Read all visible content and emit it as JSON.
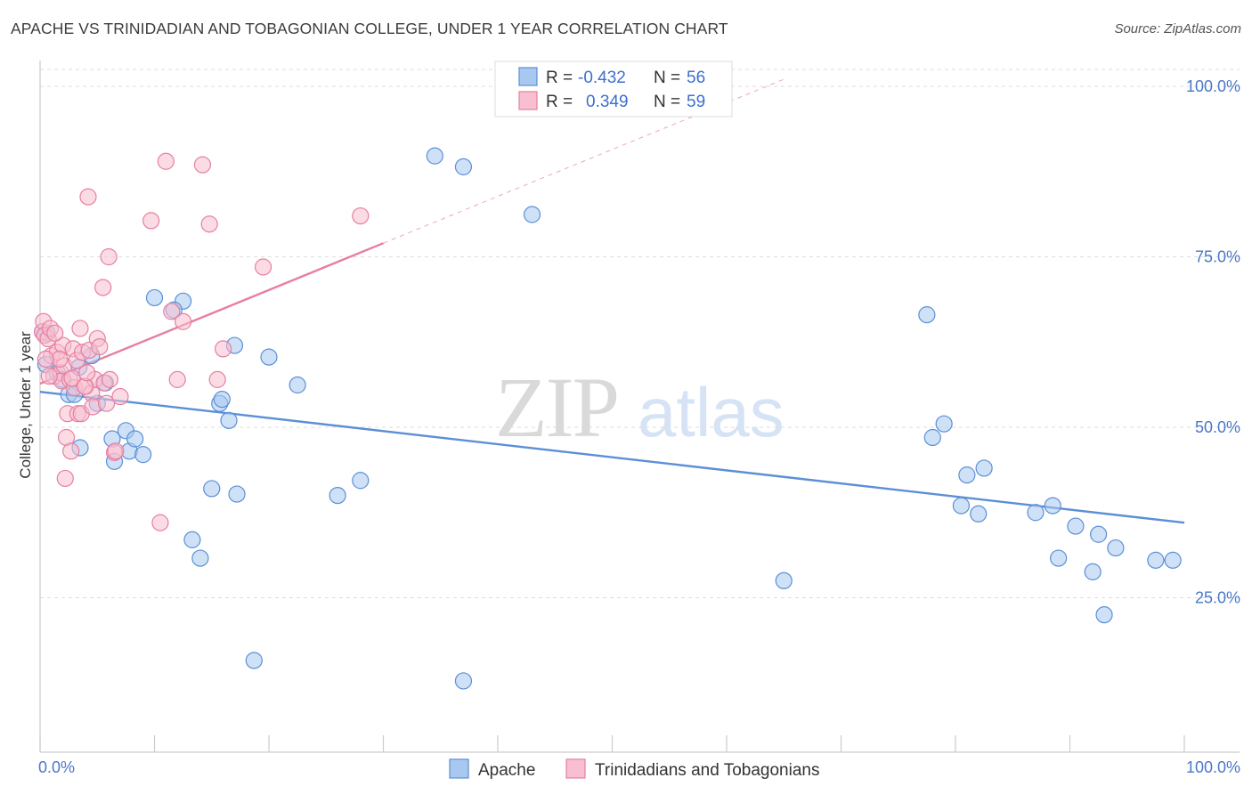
{
  "title": "APACHE VS TRINIDADIAN AND TOBAGONIAN COLLEGE, UNDER 1 YEAR CORRELATION CHART",
  "source": "Source: ZipAtlas.com",
  "watermark": {
    "zip": "ZIP",
    "atlas": "atlas"
  },
  "legend": {
    "r_label": "R =",
    "n_label": "N =",
    "rows": [
      {
        "r": "-0.432",
        "n": "56",
        "fill": "#a8c8f0",
        "stroke": "#5b8fd6"
      },
      {
        "r": "0.349",
        "n": "59",
        "fill": "#f8bfd0",
        "stroke": "#e77fa0"
      }
    ]
  },
  "bottom_legend": [
    {
      "label": "Apache",
      "fill": "#a8c8f0",
      "stroke": "#5b8fd6"
    },
    {
      "label": "Trinidadians and Tobagonians",
      "fill": "#f8bfd0",
      "stroke": "#e77fa0"
    }
  ],
  "chart_data": {
    "type": "scatter",
    "xlabel": "",
    "ylabel": "College, Under 1 year",
    "xlim": [
      0,
      100
    ],
    "ylim": [
      0,
      100
    ],
    "x_tick_labels": [
      "0.0%",
      "100.0%"
    ],
    "y_tick_labels": [
      "25.0%",
      "50.0%",
      "75.0%",
      "100.0%"
    ],
    "y_ticks": [
      25,
      50,
      75,
      100
    ],
    "grid": true,
    "series": [
      {
        "name": "Apache",
        "color": "#5b8fd6",
        "fill": "#a8c8f0",
        "trend": {
          "x0": 0,
          "y0": 55.2,
          "x1": 100,
          "y1": 36.0,
          "dashed_to": 100
        },
        "points": [
          [
            0.5,
            59.2
          ],
          [
            0.6,
            63.8
          ],
          [
            1.5,
            58
          ],
          [
            2.0,
            57
          ],
          [
            3.4,
            58.8
          ],
          [
            4.5,
            60.5
          ],
          [
            2.5,
            54.8
          ],
          [
            3.0,
            54.8
          ],
          [
            3.5,
            47.0
          ],
          [
            5.0,
            53.5
          ],
          [
            5.7,
            56.5
          ],
          [
            6.3,
            48.3
          ],
          [
            6.5,
            45
          ],
          [
            7.5,
            49.5
          ],
          [
            7.8,
            46.5
          ],
          [
            8.3,
            48.3
          ],
          [
            9.0,
            46.0
          ],
          [
            10.0,
            69.0
          ],
          [
            12.5,
            68.5
          ],
          [
            11.7,
            67.2
          ],
          [
            13.3,
            33.5
          ],
          [
            14.0,
            30.8
          ],
          [
            15.0,
            41.0
          ],
          [
            15.7,
            53.5
          ],
          [
            15.9,
            54.1
          ],
          [
            16.5,
            51.0
          ],
          [
            17.0,
            62.0
          ],
          [
            17.2,
            40.2
          ],
          [
            18.7,
            15.8
          ],
          [
            20.0,
            60.3
          ],
          [
            22.5,
            56.2
          ],
          [
            26.0,
            40.0
          ],
          [
            28.0,
            42.2
          ],
          [
            34.5,
            89.8
          ],
          [
            37.0,
            88.2
          ],
          [
            37.0,
            12.8
          ],
          [
            43.0,
            81.2
          ],
          [
            65.0,
            27.5
          ],
          [
            77.5,
            66.5
          ],
          [
            78.0,
            48.5
          ],
          [
            79.0,
            50.5
          ],
          [
            80.5,
            38.5
          ],
          [
            81.0,
            43.0
          ],
          [
            82.0,
            37.3
          ],
          [
            82.5,
            44.0
          ],
          [
            87.0,
            37.5
          ],
          [
            88.5,
            38.5
          ],
          [
            89.0,
            30.8
          ],
          [
            90.5,
            35.5
          ],
          [
            92.0,
            28.8
          ],
          [
            92.5,
            34.3
          ],
          [
            93.0,
            22.5
          ],
          [
            94.0,
            32.3
          ],
          [
            97.5,
            30.5
          ],
          [
            99.0,
            30.5
          ],
          [
            0.2,
            64.0
          ]
        ]
      },
      {
        "name": "Trinidadians and Tobagonians",
        "color": "#e77fa0",
        "fill": "#f8bfd0",
        "trend": {
          "x0": 0,
          "y0": 56.4,
          "x1": 30,
          "y1": 77.0,
          "dashed_to": 65
        },
        "points": [
          [
            0.2,
            64.0
          ],
          [
            0.3,
            65.5
          ],
          [
            0.4,
            63.5
          ],
          [
            0.7,
            63.0
          ],
          [
            0.9,
            64.5
          ],
          [
            1.0,
            60.5
          ],
          [
            1.2,
            57.5
          ],
          [
            1.5,
            61.0
          ],
          [
            1.8,
            58.0
          ],
          [
            1.9,
            56.8
          ],
          [
            2.0,
            62.0
          ],
          [
            2.1,
            59.0
          ],
          [
            2.2,
            42.5
          ],
          [
            2.3,
            48.5
          ],
          [
            2.4,
            52.0
          ],
          [
            2.6,
            57.0
          ],
          [
            2.7,
            46.5
          ],
          [
            2.9,
            61.5
          ],
          [
            3.0,
            55.8
          ],
          [
            3.2,
            59.8
          ],
          [
            3.3,
            52.0
          ],
          [
            3.5,
            64.5
          ],
          [
            3.6,
            52.0
          ],
          [
            3.7,
            61.0
          ],
          [
            4.0,
            56.0
          ],
          [
            4.2,
            83.8
          ],
          [
            4.3,
            61.3
          ],
          [
            4.5,
            55.0
          ],
          [
            4.6,
            53.0
          ],
          [
            4.8,
            57.0
          ],
          [
            5.0,
            63.0
          ],
          [
            5.2,
            61.8
          ],
          [
            5.5,
            70.5
          ],
          [
            5.6,
            56.5
          ],
          [
            5.8,
            53.5
          ],
          [
            6.0,
            75.0
          ],
          [
            6.1,
            57.0
          ],
          [
            6.5,
            46.3
          ],
          [
            6.6,
            46.5
          ],
          [
            7.0,
            54.5
          ],
          [
            9.7,
            80.3
          ],
          [
            10.5,
            36.0
          ],
          [
            11.0,
            89.0
          ],
          [
            11.5,
            67.0
          ],
          [
            12.0,
            57.0
          ],
          [
            12.5,
            65.5
          ],
          [
            14.2,
            88.5
          ],
          [
            14.8,
            79.8
          ],
          [
            15.5,
            57.0
          ],
          [
            16.0,
            61.5
          ],
          [
            19.5,
            73.5
          ],
          [
            28.0,
            81.0
          ],
          [
            1.3,
            63.8
          ],
          [
            1.7,
            60.0
          ],
          [
            2.8,
            57.2
          ],
          [
            3.9,
            56.0
          ],
          [
            4.1,
            58.0
          ],
          [
            0.8,
            57.5
          ],
          [
            0.5,
            60.0
          ]
        ]
      }
    ]
  }
}
